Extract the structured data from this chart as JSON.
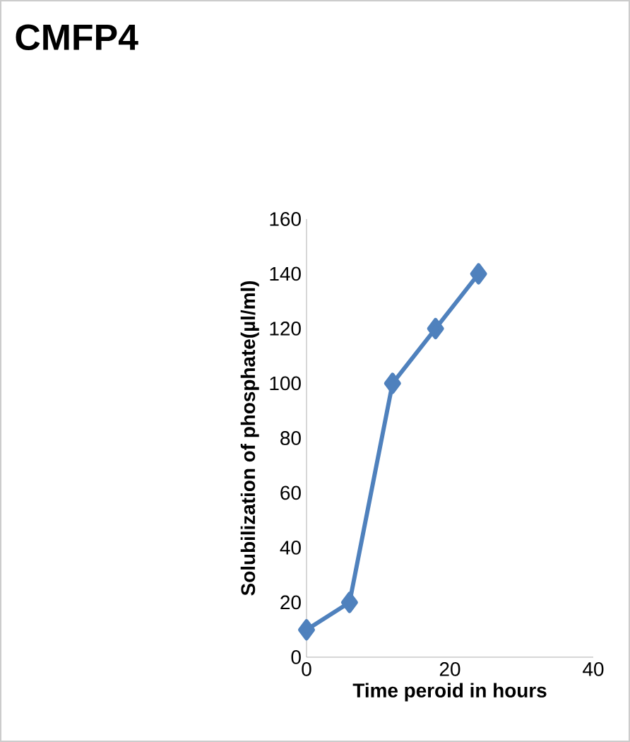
{
  "chart_data": {
    "type": "line",
    "title": "CMFP4",
    "xlabel": "Time peroid in hours",
    "ylabel": "Solubilization of phosphate(µl/ml)",
    "x": [
      0,
      6,
      12,
      18,
      24
    ],
    "series": [
      {
        "color": "#4f81bd",
        "values": [
          10,
          20,
          100,
          120,
          140
        ]
      }
    ],
    "xlim": [
      0,
      40
    ],
    "xticks": [
      0,
      20,
      40
    ],
    "ylim": [
      0,
      160
    ],
    "yticks": [
      0,
      20,
      40,
      60,
      80,
      100,
      120,
      140,
      160
    ],
    "grid": false,
    "marker": "diamond",
    "line_style": "solid"
  }
}
